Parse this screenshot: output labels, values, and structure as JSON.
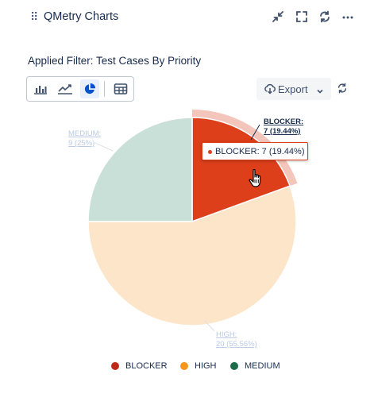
{
  "header": {
    "drag_icon": "drag-handle-icon",
    "title": "QMetry Charts",
    "actions": [
      "collapse-icon",
      "fullscreen-icon",
      "refresh-icon",
      "more-icon"
    ]
  },
  "filter": {
    "label": "Applied Filter: Test Cases By Priority"
  },
  "toolbar": {
    "buttons": [
      {
        "icon": "bar-chart-icon",
        "active": false
      },
      {
        "icon": "line-chart-icon",
        "active": false
      },
      {
        "icon": "pie-chart-icon",
        "active": true
      },
      {
        "icon": "table-icon",
        "active": false
      }
    ]
  },
  "export": {
    "label": "Export",
    "icon": "cloud-download-icon"
  },
  "colors": {
    "blocker": "#dc3f1a",
    "high": "#fde5c9",
    "medium": "#c9e0d8",
    "blocker_legend": "#c0291a",
    "high_legend": "#f6961e",
    "medium_legend": "#1e6b4a"
  },
  "chart_data": {
    "type": "pie",
    "title": "",
    "slices": [
      {
        "name": "BLOCKER",
        "value": 7,
        "percent": 19.44,
        "label": "BLOCKER:",
        "value_label": "7 (19.44%)"
      },
      {
        "name": "HIGH",
        "value": 20,
        "percent": 55.56,
        "label": "HIGH:",
        "value_label": "20 (55.56%)"
      },
      {
        "name": "MEDIUM",
        "value": 9,
        "percent": 25,
        "label": "MEDIUM:",
        "value_label": "9 (25%)"
      }
    ],
    "legend": [
      "BLOCKER",
      "HIGH",
      "MEDIUM"
    ],
    "legend_position": "bottom",
    "highlighted": "BLOCKER"
  },
  "tooltip": {
    "text": "BLOCKER: 7 (19.44%)"
  }
}
